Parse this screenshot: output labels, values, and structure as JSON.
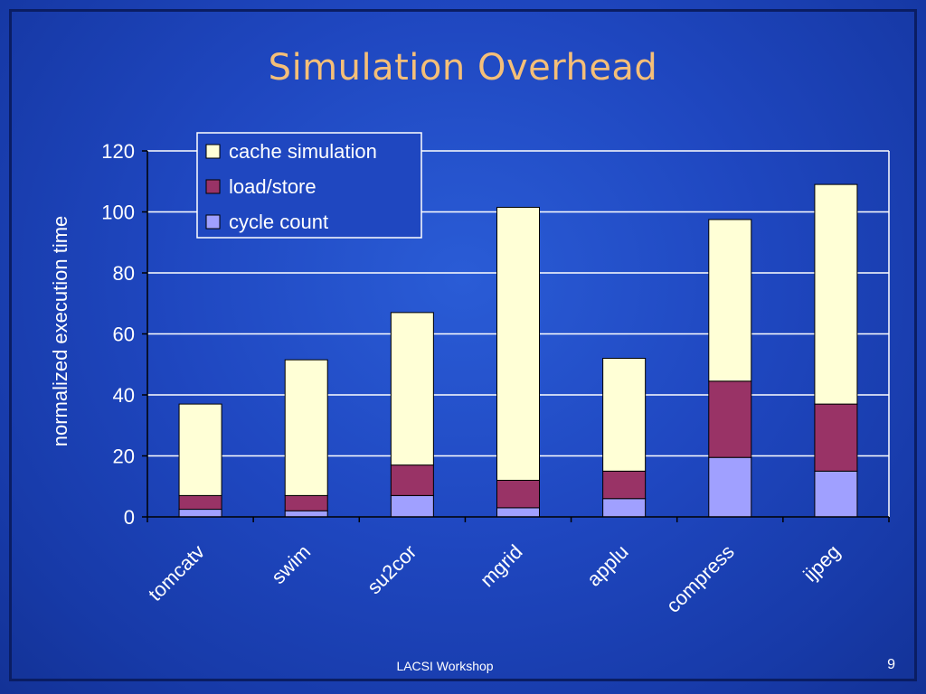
{
  "slide": {
    "title": "Simulation Overhead",
    "footer": "LACSI Workshop",
    "page_number": "9"
  },
  "colors": {
    "background": "#1f47c0",
    "title": "#f5bf78",
    "cache_simulation": "#ffffd6",
    "load_store": "#993366",
    "cycle_count": "#a0a0ff",
    "axis": "#000000",
    "text": "#ffffff"
  },
  "chart_data": {
    "type": "bar",
    "stacked": true,
    "categories": [
      "tomcatv",
      "swim",
      "su2cor",
      "mgrid",
      "applu",
      "compress",
      "ijpeg"
    ],
    "series": [
      {
        "name": "cycle count",
        "values": [
          2.5,
          2,
          7,
          3,
          6,
          19.5,
          15
        ]
      },
      {
        "name": "load/store",
        "values": [
          4.5,
          5,
          10,
          9,
          9,
          25,
          22
        ]
      },
      {
        "name": "cache simulation",
        "values": [
          30,
          44.5,
          50,
          89.5,
          37,
          53,
          72
        ]
      }
    ],
    "legend_order": [
      "cache simulation",
      "load/store",
      "cycle count"
    ],
    "ylabel": "normalized execution time",
    "xlabel": "",
    "ylim": [
      0,
      120
    ],
    "yticks": [
      0,
      20,
      40,
      60,
      80,
      100,
      120
    ],
    "grid": true,
    "legend_position": "top-left inside plot"
  }
}
